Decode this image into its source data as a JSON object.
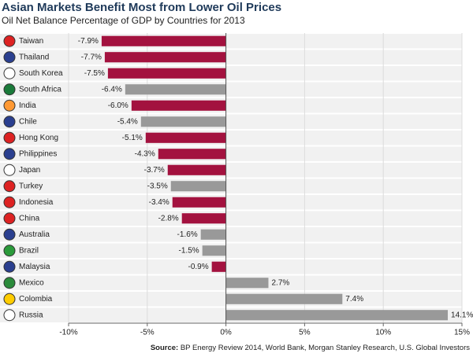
{
  "chart_data": {
    "type": "bar",
    "orientation": "horizontal",
    "title": "Asian Markets Benefit Most from Lower Oil Prices",
    "subtitle": "Oil Net Balance Percentage of GDP by Countries for 2013",
    "source_label": "Source:",
    "source": "BP Energy Review 2014, World Bank, Morgan Stanley Research, U.S. Global Investors",
    "categories": [
      "Taiwan",
      "Thailand",
      "South Korea",
      "South Africa",
      "India",
      "Chile",
      "Hong Kong",
      "Philippines",
      "Japan",
      "Turkey",
      "Indonesia",
      "China",
      "Australia",
      "Brazil",
      "Malaysia",
      "Mexico",
      "Colombia",
      "Russia"
    ],
    "values": [
      -7.9,
      -7.7,
      -7.5,
      -6.4,
      -6.0,
      -5.4,
      -5.1,
      -4.3,
      -3.7,
      -3.5,
      -3.4,
      -2.8,
      -1.6,
      -1.5,
      -0.9,
      2.7,
      7.4,
      14.1
    ],
    "value_labels": [
      "-7.9%",
      "-7.7%",
      "-7.5%",
      "-6.4%",
      "-6.0%",
      "-5.4%",
      "-5.1%",
      "-4.3%",
      "-3.7%",
      "-3.5%",
      "-3.4%",
      "-2.8%",
      "-1.6%",
      "-1.5%",
      "-0.9%",
      "2.7%",
      "7.4%",
      "14.1%"
    ],
    "colors": [
      "#a3123f",
      "#a3123f",
      "#a3123f",
      "#999999",
      "#a3123f",
      "#999999",
      "#a3123f",
      "#a3123f",
      "#a3123f",
      "#999999",
      "#a3123f",
      "#a3123f",
      "#999999",
      "#999999",
      "#a3123f",
      "#999999",
      "#999999",
      "#999999"
    ],
    "xlim": [
      -10,
      15
    ],
    "xticks": [
      {
        "value": -10,
        "label": "-10%"
      },
      {
        "value": -5,
        "label": "-5%"
      },
      {
        "value": 0,
        "label": "0%"
      },
      {
        "value": 5,
        "label": "5%"
      },
      {
        "value": 10,
        "label": "10%"
      },
      {
        "value": 15,
        "label": "15%"
      }
    ],
    "grid": true
  }
}
